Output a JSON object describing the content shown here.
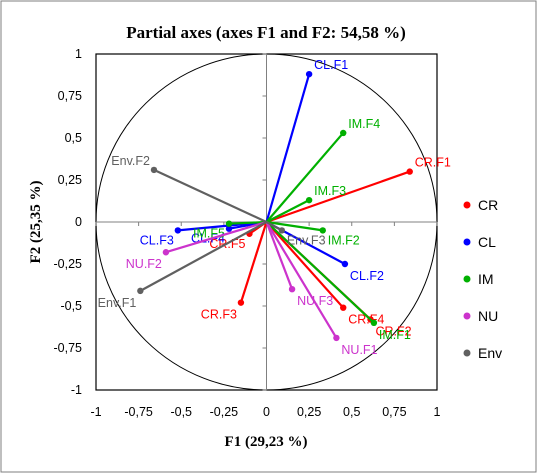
{
  "chart_data": {
    "type": "biplot",
    "title": "Partial axes (axes F1 and F2: 54,58 %)",
    "xlabel": "F1 (29,23 %)",
    "ylabel": "F2 (25,35 %)",
    "xlim": [
      -1,
      1
    ],
    "ylim": [
      -1,
      1
    ],
    "xticks": [
      "-1",
      "-0,75",
      "-0,5",
      "-0,25",
      "0",
      "0,25",
      "0,5",
      "0,75",
      "1"
    ],
    "yticks": [
      "1",
      "0,75",
      "0,5",
      "0,25",
      "0",
      "-0,25",
      "-0,5",
      "-0,75",
      "-1"
    ],
    "circle": true,
    "legend_position": "right",
    "series": [
      {
        "name": "CR",
        "color": "#ff0000",
        "points": [
          {
            "label": "CR.F1",
            "x": 0.84,
            "y": 0.3
          },
          {
            "label": "CR.F2",
            "x": 0.61,
            "y": -0.58
          },
          {
            "label": "CR.F3",
            "x": -0.15,
            "y": -0.48
          },
          {
            "label": "CR.F4",
            "x": 0.45,
            "y": -0.51
          },
          {
            "label": "CR.F5",
            "x": -0.1,
            "y": -0.07
          }
        ]
      },
      {
        "name": "CL",
        "color": "#0000ff",
        "points": [
          {
            "label": "CL.F1",
            "x": 0.25,
            "y": 0.88
          },
          {
            "label": "CL.F2",
            "x": 0.46,
            "y": -0.25
          },
          {
            "label": "CL.F3",
            "x": -0.52,
            "y": -0.05
          },
          {
            "label": "CL.F4",
            "x": -0.22,
            "y": -0.04
          }
        ]
      },
      {
        "name": "IM",
        "color": "#00b000",
        "points": [
          {
            "label": "IM.F4",
            "x": 0.45,
            "y": 0.53
          },
          {
            "label": "IM.F3",
            "x": 0.25,
            "y": 0.13
          },
          {
            "label": "IM.F2",
            "x": 0.33,
            "y": -0.05
          },
          {
            "label": "IM.F1",
            "x": 0.63,
            "y": -0.6
          },
          {
            "label": "IM.F5",
            "x": -0.22,
            "y": -0.01
          }
        ]
      },
      {
        "name": "NU",
        "color": "#cc33cc",
        "points": [
          {
            "label": "NU.F1",
            "x": 0.41,
            "y": -0.69
          },
          {
            "label": "NU.F2",
            "x": -0.59,
            "y": -0.18
          },
          {
            "label": "NU.F3",
            "x": 0.15,
            "y": -0.4
          }
        ]
      },
      {
        "name": "Env",
        "color": "#606060",
        "points": [
          {
            "label": "Env.F2",
            "x": -0.66,
            "y": 0.31
          },
          {
            "label": "Env.F1",
            "x": -0.74,
            "y": -0.41
          },
          {
            "label": "Env.F3",
            "x": 0.09,
            "y": -0.05
          }
        ]
      }
    ]
  }
}
